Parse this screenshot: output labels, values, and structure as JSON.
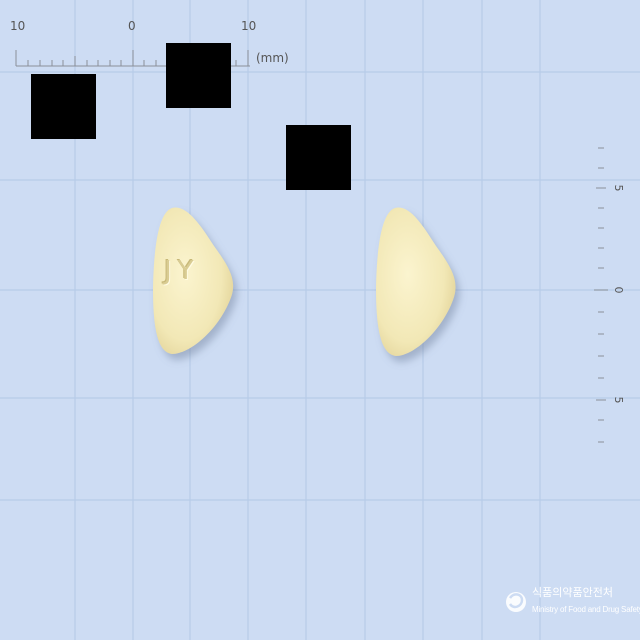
{
  "ruler": {
    "top_labels": [
      "10",
      "0",
      "10"
    ],
    "unit": "(mm)",
    "side_labels": [
      "5",
      "0",
      "5"
    ]
  },
  "tablets": [
    {
      "imprint": "JY",
      "color": "#f4ebbd"
    },
    {
      "imprint": "",
      "color": "#f4ebbd"
    }
  ],
  "logo": {
    "korean": "식품의약품안전처",
    "english": "Ministry of Food and Drug Safety"
  },
  "colors": {
    "background": "#cddcf3",
    "grid": "#b4c8e6",
    "tablet": "#f4ebbd",
    "redaction": "#000000"
  }
}
